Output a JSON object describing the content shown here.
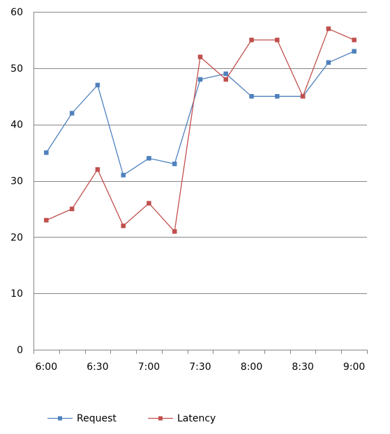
{
  "chart_data": {
    "type": "line",
    "title": "",
    "xlabel": "",
    "ylabel": "",
    "x": [
      "6:00",
      "6:15",
      "6:30",
      "6:45",
      "7:00",
      "7:15",
      "7:30",
      "7:45",
      "8:00",
      "8:15",
      "8:30",
      "8:45",
      "9:00"
    ],
    "x_tick_labels": [
      "6:00",
      "6:30",
      "7:00",
      "7:30",
      "8:00",
      "8:30",
      "9:00"
    ],
    "ylim": [
      0,
      60
    ],
    "y_ticks": [
      0,
      10,
      20,
      30,
      40,
      50,
      60
    ],
    "grid": "horizontal",
    "legend_position": "bottom",
    "series": [
      {
        "name": "Request",
        "color": "#4f81bd",
        "values": [
          35,
          42,
          47,
          31,
          34,
          33,
          48,
          49,
          45,
          45,
          45,
          51,
          53
        ]
      },
      {
        "name": "Latency",
        "color": "#c0504d",
        "values": [
          23,
          25,
          32,
          22,
          26,
          21,
          52,
          48,
          55,
          55,
          45,
          57,
          55
        ]
      }
    ]
  }
}
